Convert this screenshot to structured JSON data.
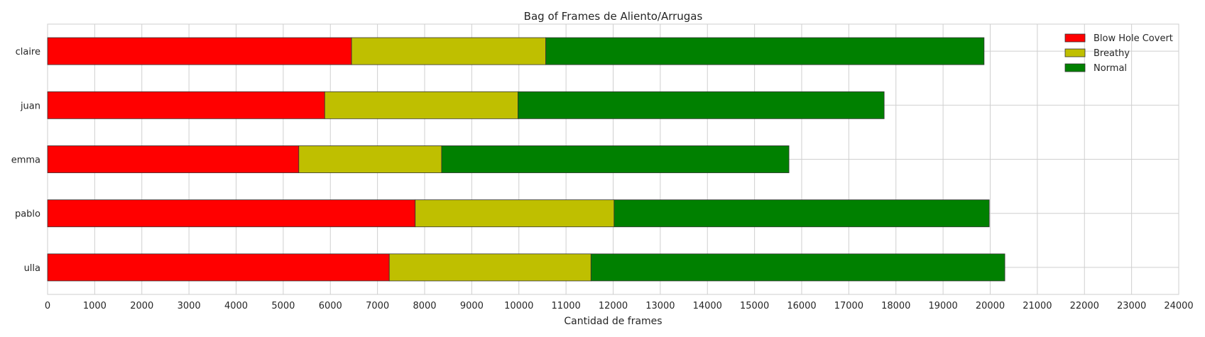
{
  "chart_data": {
    "type": "bar",
    "orientation": "horizontal",
    "stacked": true,
    "title": "Bag of Frames de Aliento/Arrugas",
    "xlabel": "Cantidad de frames",
    "ylabel": "",
    "xlim": [
      0,
      24000
    ],
    "xticks": [
      0,
      1000,
      2000,
      3000,
      4000,
      5000,
      6000,
      7000,
      8000,
      9000,
      10000,
      11000,
      12000,
      13000,
      14000,
      15000,
      16000,
      17000,
      18000,
      19000,
      20000,
      21000,
      22000,
      23000,
      24000
    ],
    "categories": [
      "claire",
      "juan",
      "emma",
      "pablo",
      "ulla"
    ],
    "series": [
      {
        "name": "Blow Hole Covert",
        "color": "#ff0000",
        "values": [
          6450,
          5880,
          5330,
          7800,
          7250
        ]
      },
      {
        "name": "Breathy",
        "color": "#bfbf00",
        "values": [
          4120,
          4100,
          3030,
          4220,
          4280
        ]
      },
      {
        "name": "Normal",
        "color": "#008000",
        "values": [
          9300,
          7770,
          7370,
          7960,
          8780
        ]
      }
    ],
    "grid": true,
    "legend_position": "top-right"
  }
}
